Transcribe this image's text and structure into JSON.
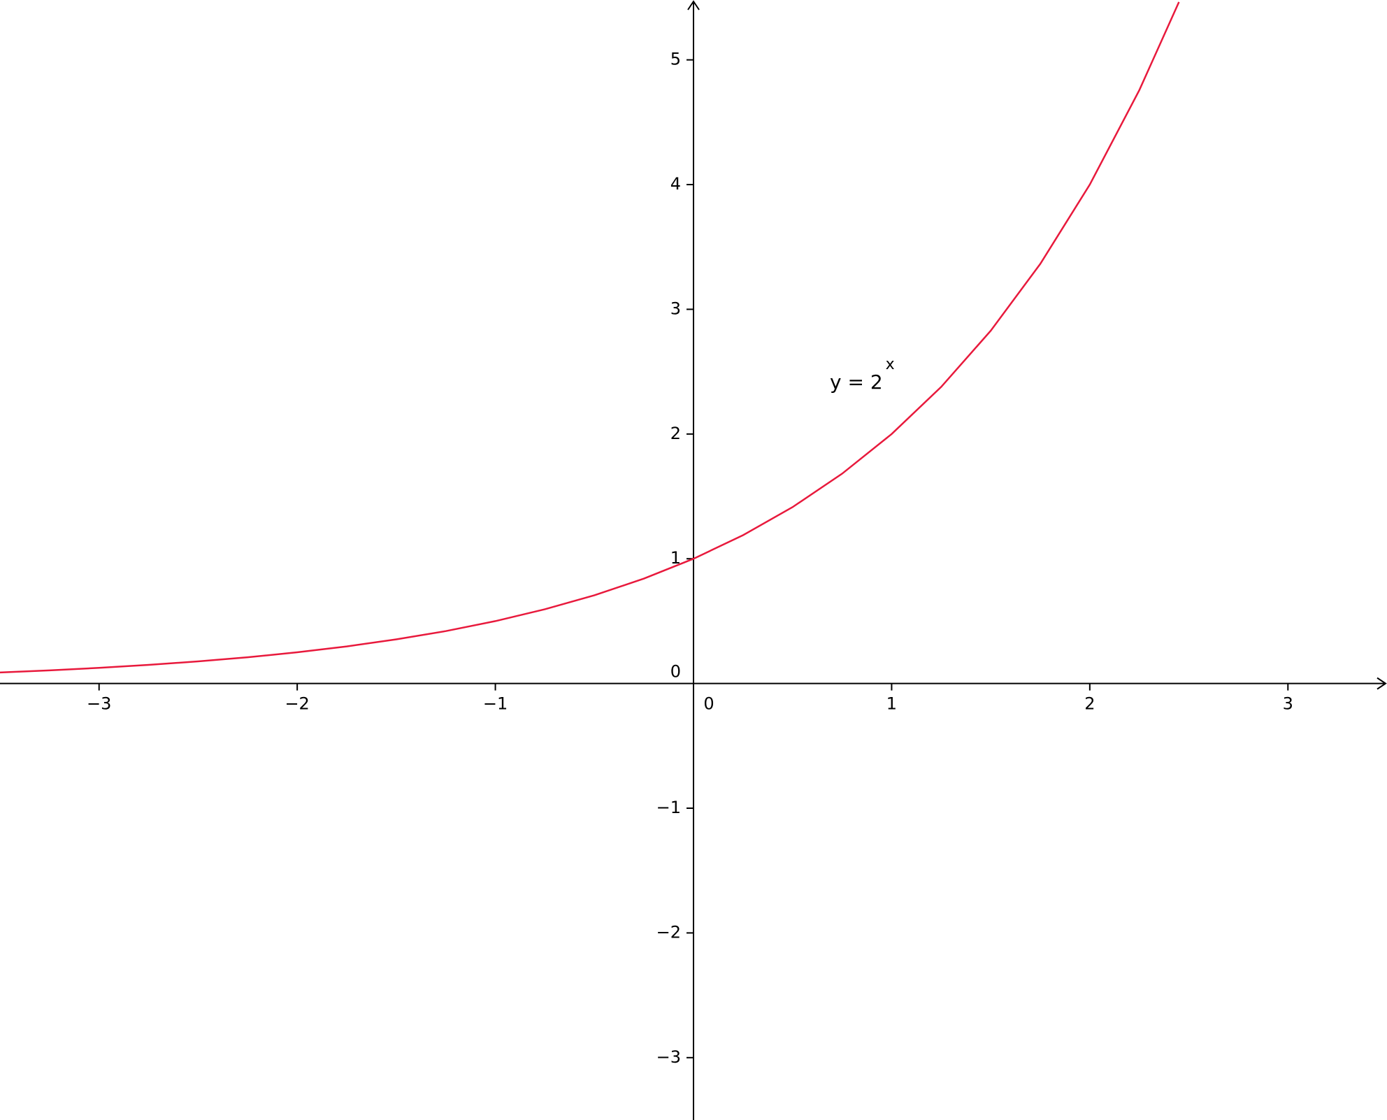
{
  "chart_data": {
    "type": "line",
    "annotation": {
      "base": "y = 2",
      "exponent": "x"
    },
    "x": [
      -3.5,
      -3.25,
      -3,
      -2.75,
      -2.5,
      -2.25,
      -2,
      -1.75,
      -1.5,
      -1.25,
      -1,
      -0.75,
      -0.5,
      -0.25,
      0,
      0.25,
      0.5,
      0.75,
      1,
      1.25,
      1.5,
      1.75,
      2,
      2.25,
      2.45
    ],
    "values": [
      0.088,
      0.105,
      0.125,
      0.149,
      0.177,
      0.21,
      0.25,
      0.297,
      0.354,
      0.42,
      0.5,
      0.595,
      0.707,
      0.841,
      1,
      1.189,
      1.414,
      1.682,
      2,
      2.378,
      2.828,
      3.364,
      4,
      4.757,
      5.464
    ],
    "color": "#e8193c",
    "xlim": [
      -3.5,
      3.5
    ],
    "ylim": [
      -3.5,
      5.48
    ],
    "xticks": [
      {
        "value": -3,
        "label": "−3"
      },
      {
        "value": -2,
        "label": "−2"
      },
      {
        "value": -1,
        "label": "−1"
      },
      0,
      1,
      2,
      3
    ],
    "yticks": [
      {
        "value": -3,
        "label": "−3"
      },
      {
        "value": -2,
        "label": "−2"
      },
      {
        "value": -1,
        "label": "−1"
      },
      0,
      1,
      2,
      3,
      4,
      5
    ]
  }
}
